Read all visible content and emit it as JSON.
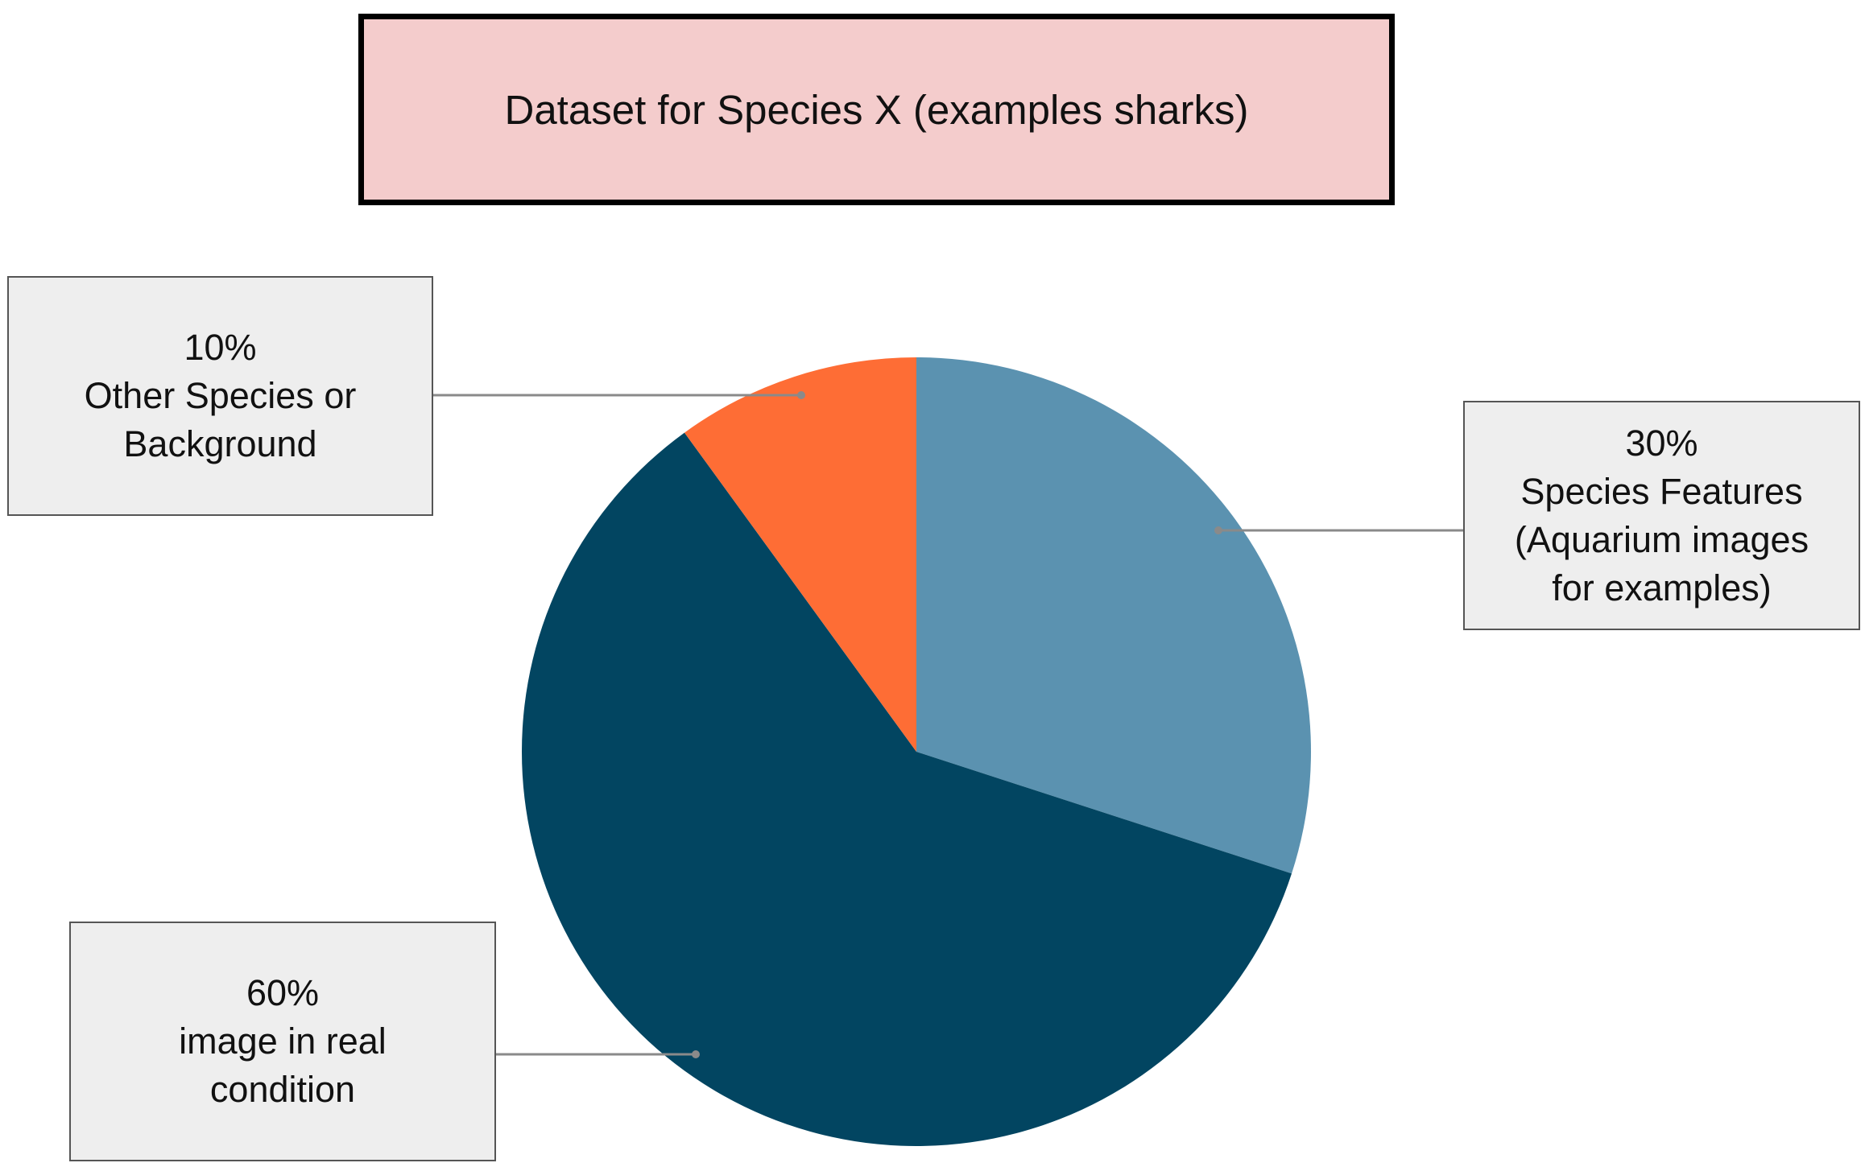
{
  "title": "Dataset for Species X (examples sharks)",
  "colors": {
    "title_bg": "#f4cccc",
    "callout_bg": "#eeeeee",
    "leader": "#8a8a8a"
  },
  "chart_data": {
    "type": "pie",
    "title": "Dataset for Species X (examples sharks)",
    "start_angle_deg": 0,
    "direction": "clockwise",
    "slices": [
      {
        "value": 30,
        "percent_label": "30%",
        "label_lines": [
          "Species Features",
          "(Aquarium images",
          "for examples)"
        ],
        "color": "#5b92b0"
      },
      {
        "value": 60,
        "percent_label": "60%",
        "label_lines": [
          "image in real",
          "condition"
        ],
        "color": "#024561"
      },
      {
        "value": 10,
        "percent_label": "10%",
        "label_lines": [
          "Other Species or",
          "Background"
        ],
        "color": "#fe6d35"
      }
    ]
  }
}
